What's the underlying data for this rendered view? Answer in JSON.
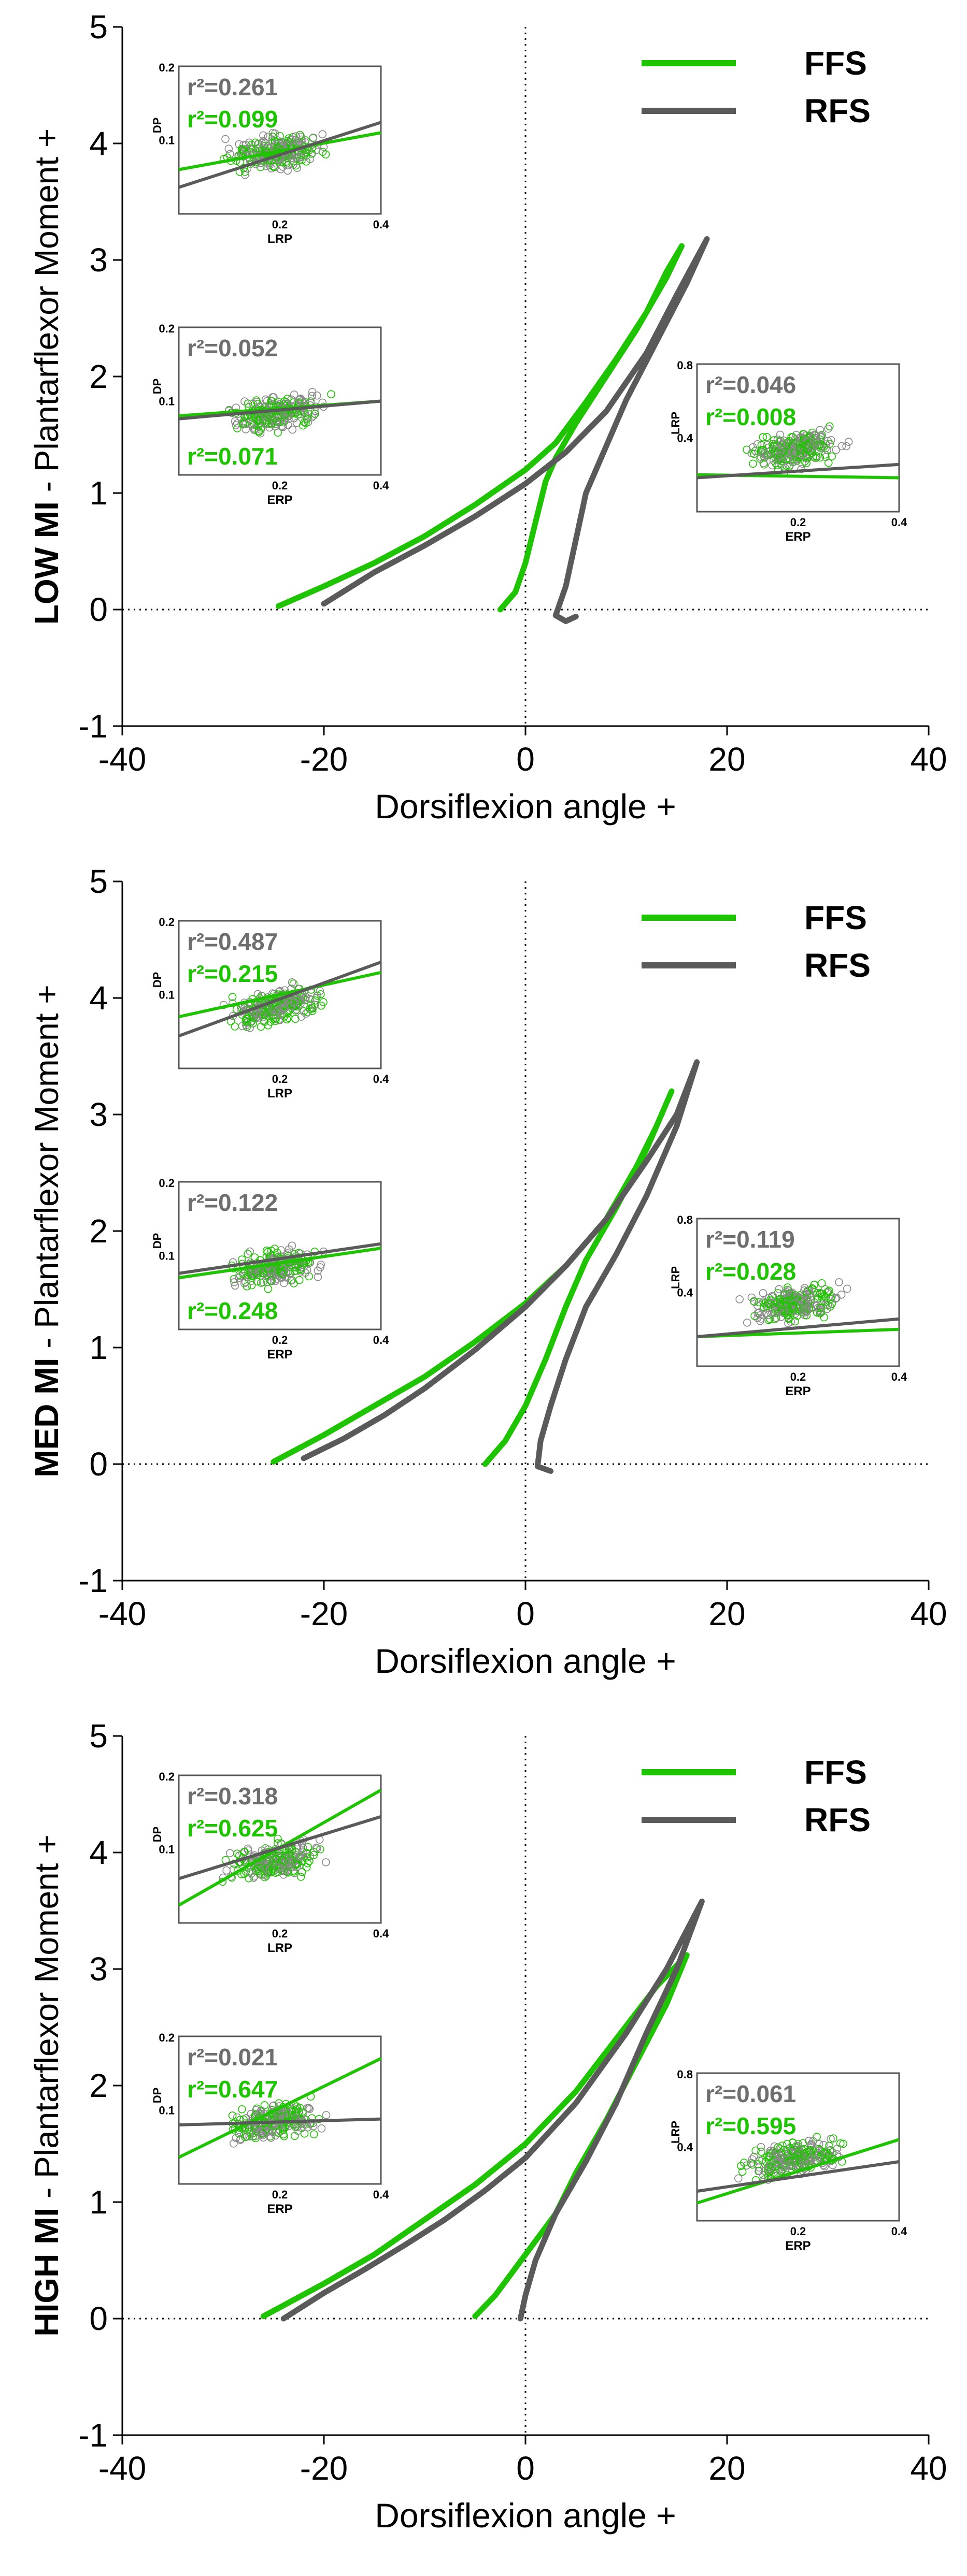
{
  "colors": {
    "ffs": "#1fc400",
    "rfs": "#5a5a5a",
    "inset_rfs_text": "#6e6e6e",
    "axis": "#000000"
  },
  "legend": [
    {
      "label": "FFS",
      "color": "#1fc400"
    },
    {
      "label": "RFS",
      "color": "#5a5a5a"
    }
  ],
  "chart_data": [
    {
      "type": "line",
      "id": "low",
      "ylabel_prefix": "LOW MI",
      "ylabel_suffix": " - Plantarflexor Moment +",
      "xlabel": "Dorsiflexion angle +",
      "xlim": [
        -40,
        40
      ],
      "ylim": [
        -1,
        5
      ],
      "xticks": [
        -40,
        -20,
        0,
        20,
        40
      ],
      "yticks": [
        -1,
        0,
        1,
        2,
        3,
        4,
        5
      ],
      "series": [
        {
          "name": "FFS",
          "points": [
            [
              -24.5,
              0.03
            ],
            [
              -20,
              0.2
            ],
            [
              -15,
              0.4
            ],
            [
              -10,
              0.63
            ],
            [
              -5,
              0.9
            ],
            [
              0,
              1.2
            ],
            [
              3,
              1.43
            ],
            [
              6,
              1.78
            ],
            [
              9,
              2.15
            ],
            [
              12,
              2.55
            ],
            [
              14,
              2.9
            ],
            [
              15.5,
              3.12
            ],
            [
              14,
              2.85
            ],
            [
              11,
              2.4
            ],
            [
              8,
              2.0
            ],
            [
              5,
              1.6
            ],
            [
              3,
              1.3
            ],
            [
              2,
              1.1
            ],
            [
              1,
              0.75
            ],
            [
              0,
              0.4
            ],
            [
              -1,
              0.15
            ],
            [
              -2.5,
              0.0
            ]
          ]
        },
        {
          "name": "RFS",
          "points": [
            [
              -20,
              0.05
            ],
            [
              -15,
              0.32
            ],
            [
              -10,
              0.55
            ],
            [
              -5,
              0.8
            ],
            [
              0,
              1.08
            ],
            [
              4,
              1.35
            ],
            [
              8,
              1.7
            ],
            [
              12,
              2.2
            ],
            [
              15,
              2.7
            ],
            [
              18,
              3.18
            ],
            [
              16,
              2.8
            ],
            [
              13,
              2.3
            ],
            [
              10,
              1.8
            ],
            [
              8,
              1.4
            ],
            [
              6,
              1.0
            ],
            [
              5,
              0.6
            ],
            [
              4,
              0.2
            ],
            [
              3,
              -0.05
            ],
            [
              4,
              -0.1
            ],
            [
              5,
              -0.06
            ]
          ]
        }
      ],
      "insets": [
        {
          "id": "dp-lrp",
          "xlabel": "LRP",
          "ylabel": "DP",
          "xticks": [
            "0.2",
            "0.4"
          ],
          "ytick": "0.1",
          "ytop": "0.2",
          "r2_rfs": "r²=0.261",
          "r2_ffs": "r²=0.099",
          "ffs_line": [
            0.3,
            0.55
          ],
          "rfs_line": [
            0.18,
            0.62
          ]
        },
        {
          "id": "dp-erp",
          "xlabel": "ERP",
          "ylabel": "DP",
          "xticks": [
            "0.2",
            "0.4"
          ],
          "ytick": "0.1",
          "ytop": "0.2",
          "r2_rfs": "r²=0.052",
          "r2_ffs": "r²=0.071",
          "ffs_line": [
            0.4,
            0.5
          ],
          "rfs_line": [
            0.38,
            0.5
          ]
        },
        {
          "id": "lrp-erp",
          "xlabel": "ERP",
          "ylabel": "LRP",
          "xticks": [
            "0.2",
            "0.4"
          ],
          "ytick": "0.4",
          "ytop": "0.8",
          "r2_rfs": "r²=0.046",
          "r2_ffs": "r²=0.008",
          "ffs_line": [
            0.25,
            0.23
          ],
          "rfs_line": [
            0.23,
            0.32
          ]
        }
      ]
    },
    {
      "type": "line",
      "id": "med",
      "ylabel_prefix": "MED MI",
      "ylabel_suffix": " - Plantarflexor Moment +",
      "xlabel": "Dorsiflexion angle +",
      "xlim": [
        -40,
        40
      ],
      "ylim": [
        -1,
        5
      ],
      "xticks": [
        -40,
        -20,
        0,
        20,
        40
      ],
      "yticks": [
        -1,
        0,
        1,
        2,
        3,
        4,
        5
      ],
      "series": [
        {
          "name": "FFS",
          "points": [
            [
              -25,
              0.02
            ],
            [
              -20,
              0.25
            ],
            [
              -15,
              0.5
            ],
            [
              -10,
              0.75
            ],
            [
              -5,
              1.05
            ],
            [
              0,
              1.38
            ],
            [
              4,
              1.7
            ],
            [
              8,
              2.1
            ],
            [
              11,
              2.55
            ],
            [
              13,
              2.9
            ],
            [
              14.5,
              3.2
            ],
            [
              12,
              2.7
            ],
            [
              9,
              2.2
            ],
            [
              6,
              1.75
            ],
            [
              4,
              1.35
            ],
            [
              2,
              0.9
            ],
            [
              0,
              0.5
            ],
            [
              -2,
              0.2
            ],
            [
              -4,
              0.0
            ]
          ]
        },
        {
          "name": "RFS",
          "points": [
            [
              -22,
              0.05
            ],
            [
              -18,
              0.22
            ],
            [
              -14,
              0.42
            ],
            [
              -10,
              0.65
            ],
            [
              -5,
              0.98
            ],
            [
              0,
              1.35
            ],
            [
              4,
              1.7
            ],
            [
              8,
              2.1
            ],
            [
              12,
              2.6
            ],
            [
              15,
              3.0
            ],
            [
              17,
              3.45
            ],
            [
              15,
              2.9
            ],
            [
              12,
              2.3
            ],
            [
              9,
              1.8
            ],
            [
              6,
              1.35
            ],
            [
              4,
              0.9
            ],
            [
              2.5,
              0.5
            ],
            [
              1.5,
              0.2
            ],
            [
              1.2,
              -0.02
            ],
            [
              2.5,
              -0.06
            ]
          ]
        }
      ],
      "insets": [
        {
          "id": "dp-lrp",
          "xlabel": "LRP",
          "ylabel": "DP",
          "xticks": [
            "0.2",
            "0.4"
          ],
          "ytick": "0.1",
          "ytop": "0.2",
          "r2_rfs": "r²=0.487",
          "r2_ffs": "r²=0.215",
          "ffs_line": [
            0.35,
            0.65
          ],
          "rfs_line": [
            0.22,
            0.72
          ]
        },
        {
          "id": "dp-erp",
          "xlabel": "ERP",
          "ylabel": "DP",
          "xticks": [
            "0.2",
            "0.4"
          ],
          "ytick": "0.1",
          "ytop": "0.2",
          "r2_rfs": "r²=0.122",
          "r2_ffs": "r²=0.248",
          "ffs_line": [
            0.35,
            0.55
          ],
          "rfs_line": [
            0.38,
            0.58
          ]
        },
        {
          "id": "lrp-erp",
          "xlabel": "ERP",
          "ylabel": "LRP",
          "xticks": [
            "0.2",
            "0.4"
          ],
          "ytick": "0.4",
          "ytop": "0.8",
          "r2_rfs": "r²=0.119",
          "r2_ffs": "r²=0.028",
          "ffs_line": [
            0.2,
            0.25
          ],
          "rfs_line": [
            0.2,
            0.32
          ]
        }
      ]
    },
    {
      "type": "line",
      "id": "high",
      "ylabel_prefix": "HIGH MI",
      "ylabel_suffix": " - Plantarflexor Moment +",
      "xlabel": "Dorsiflexion angle +",
      "xlim": [
        -40,
        40
      ],
      "ylim": [
        -1,
        5
      ],
      "xticks": [
        -40,
        -20,
        0,
        20,
        40
      ],
      "yticks": [
        -1,
        0,
        1,
        2,
        3,
        4,
        5
      ],
      "series": [
        {
          "name": "FFS",
          "points": [
            [
              -26,
              0.02
            ],
            [
              -20,
              0.3
            ],
            [
              -15,
              0.55
            ],
            [
              -10,
              0.85
            ],
            [
              -5,
              1.15
            ],
            [
              0,
              1.5
            ],
            [
              5,
              1.95
            ],
            [
              9,
              2.4
            ],
            [
              13,
              2.85
            ],
            [
              16,
              3.12
            ],
            [
              14,
              2.7
            ],
            [
              11,
              2.2
            ],
            [
              8,
              1.7
            ],
            [
              5,
              1.25
            ],
            [
              3,
              0.9
            ],
            [
              0,
              0.55
            ],
            [
              -3,
              0.2
            ],
            [
              -5,
              0.02
            ]
          ]
        },
        {
          "name": "RFS",
          "points": [
            [
              -24,
              0.0
            ],
            [
              -20,
              0.22
            ],
            [
              -16,
              0.42
            ],
            [
              -12,
              0.63
            ],
            [
              -8,
              0.85
            ],
            [
              -4,
              1.1
            ],
            [
              0,
              1.38
            ],
            [
              5,
              1.85
            ],
            [
              10,
              2.45
            ],
            [
              14,
              3.0
            ],
            [
              17.5,
              3.58
            ],
            [
              15,
              3.0
            ],
            [
              12,
              2.45
            ],
            [
              9,
              1.85
            ],
            [
              6,
              1.35
            ],
            [
              3,
              0.9
            ],
            [
              1,
              0.5
            ],
            [
              0,
              0.2
            ],
            [
              -0.5,
              0.0
            ]
          ]
        }
      ],
      "insets": [
        {
          "id": "dp-lrp",
          "xlabel": "LRP",
          "ylabel": "DP",
          "xticks": [
            "0.2",
            "0.4"
          ],
          "ytick": "0.1",
          "ytop": "0.2",
          "r2_rfs": "r²=0.318",
          "r2_ffs": "r²=0.625",
          "ffs_line": [
            0.12,
            0.9
          ],
          "rfs_line": [
            0.3,
            0.72
          ]
        },
        {
          "id": "dp-erp",
          "xlabel": "ERP",
          "ylabel": "DP",
          "xticks": [
            "0.2",
            "0.4"
          ],
          "ytick": "0.1",
          "ytop": "0.2",
          "r2_rfs": "r²=0.021",
          "r2_ffs": "r²=0.647",
          "ffs_line": [
            0.18,
            0.85
          ],
          "rfs_line": [
            0.4,
            0.44
          ]
        },
        {
          "id": "lrp-erp",
          "xlabel": "ERP",
          "ylabel": "LRP",
          "xticks": [
            "0.2",
            "0.4"
          ],
          "ytick": "0.4",
          "ytop": "0.8",
          "r2_rfs": "r²=0.061",
          "r2_ffs": "r²=0.595",
          "ffs_line": [
            0.12,
            0.55
          ],
          "rfs_line": [
            0.2,
            0.4
          ]
        }
      ]
    }
  ]
}
